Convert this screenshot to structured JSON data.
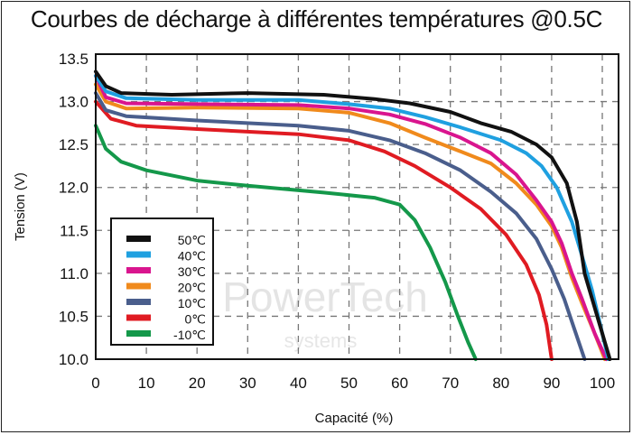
{
  "chart_data": {
    "type": "line",
    "title": "Courbes de décharge à différentes températures @0.5C",
    "xlabel": "Capacité (%)",
    "ylabel": "Tension (V)",
    "xlim": [
      0,
      101.5
    ],
    "ylim": [
      10.0,
      13.5
    ],
    "grid": true,
    "legend_position": "bottom-left",
    "x_ticks": [
      "0",
      "10",
      "20",
      "30",
      "40",
      "50",
      "60",
      "70",
      "80",
      "90",
      "100"
    ],
    "y_ticks": [
      "10.0",
      "10.5",
      "11.0",
      "11.5",
      "12.0",
      "12.5",
      "13.0",
      "13.5"
    ],
    "watermark": "PowerTech systems",
    "series": [
      {
        "name": "50℃",
        "color": "#111111",
        "points": [
          [
            0,
            13.35
          ],
          [
            2,
            13.18
          ],
          [
            5,
            13.1
          ],
          [
            15,
            13.08
          ],
          [
            30,
            13.1
          ],
          [
            45,
            13.08
          ],
          [
            55,
            13.03
          ],
          [
            62,
            12.98
          ],
          [
            70,
            12.88
          ],
          [
            76,
            12.75
          ],
          [
            82,
            12.65
          ],
          [
            87,
            12.5
          ],
          [
            90,
            12.35
          ],
          [
            93,
            12.05
          ],
          [
            95,
            11.6
          ],
          [
            96.5,
            11.0
          ],
          [
            98,
            10.7
          ],
          [
            100,
            10.3
          ],
          [
            101.5,
            10.0
          ]
        ]
      },
      {
        "name": "40℃",
        "color": "#1fa0e0",
        "points": [
          [
            0,
            13.3
          ],
          [
            2,
            13.12
          ],
          [
            6,
            13.04
          ],
          [
            20,
            13.02
          ],
          [
            40,
            13.02
          ],
          [
            50,
            12.97
          ],
          [
            58,
            12.92
          ],
          [
            65,
            12.82
          ],
          [
            72,
            12.7
          ],
          [
            80,
            12.55
          ],
          [
            85,
            12.4
          ],
          [
            88,
            12.25
          ],
          [
            91,
            12.0
          ],
          [
            94,
            11.6
          ],
          [
            96,
            11.2
          ],
          [
            98,
            10.8
          ],
          [
            100,
            10.3
          ],
          [
            101.2,
            10.0
          ]
        ]
      },
      {
        "name": "30℃",
        "color": "#d9158e",
        "points": [
          [
            0,
            13.3
          ],
          [
            2,
            13.05
          ],
          [
            6,
            12.98
          ],
          [
            20,
            12.97
          ],
          [
            40,
            12.96
          ],
          [
            50,
            12.92
          ],
          [
            58,
            12.85
          ],
          [
            65,
            12.74
          ],
          [
            72,
            12.58
          ],
          [
            78,
            12.4
          ],
          [
            83,
            12.15
          ],
          [
            87,
            11.85
          ],
          [
            90,
            11.6
          ],
          [
            92,
            11.35
          ],
          [
            94,
            11.0
          ],
          [
            96,
            10.7
          ],
          [
            98.5,
            10.3
          ],
          [
            100.8,
            10.0
          ]
        ]
      },
      {
        "name": "20℃",
        "color": "#f08a1c",
        "points": [
          [
            0,
            13.2
          ],
          [
            2,
            13.0
          ],
          [
            6,
            12.92
          ],
          [
            20,
            12.93
          ],
          [
            40,
            12.92
          ],
          [
            50,
            12.87
          ],
          [
            58,
            12.75
          ],
          [
            65,
            12.58
          ],
          [
            72,
            12.42
          ],
          [
            78,
            12.28
          ],
          [
            83,
            12.05
          ],
          [
            87,
            11.8
          ],
          [
            90,
            11.55
          ],
          [
            92,
            11.3
          ],
          [
            94,
            10.95
          ],
          [
            96,
            10.65
          ],
          [
            98.5,
            10.3
          ],
          [
            100.5,
            10.0
          ]
        ]
      },
      {
        "name": "10℃",
        "color": "#4a5e8c",
        "points": [
          [
            0,
            13.1
          ],
          [
            2,
            12.9
          ],
          [
            6,
            12.83
          ],
          [
            20,
            12.78
          ],
          [
            40,
            12.72
          ],
          [
            50,
            12.66
          ],
          [
            58,
            12.55
          ],
          [
            65,
            12.4
          ],
          [
            72,
            12.2
          ],
          [
            78,
            11.95
          ],
          [
            83,
            11.7
          ],
          [
            87,
            11.4
          ],
          [
            90,
            11.05
          ],
          [
            92.5,
            10.7
          ],
          [
            94.5,
            10.35
          ],
          [
            96.5,
            10.0
          ]
        ]
      },
      {
        "name": "0℃",
        "color": "#e01b22",
        "points": [
          [
            0,
            13.0
          ],
          [
            3,
            12.8
          ],
          [
            8,
            12.72
          ],
          [
            20,
            12.68
          ],
          [
            40,
            12.62
          ],
          [
            50,
            12.55
          ],
          [
            57,
            12.42
          ],
          [
            63,
            12.25
          ],
          [
            70,
            12.0
          ],
          [
            76,
            11.75
          ],
          [
            81,
            11.45
          ],
          [
            85,
            11.1
          ],
          [
            87.5,
            10.75
          ],
          [
            89,
            10.4
          ],
          [
            90,
            10.0
          ]
        ]
      },
      {
        "name": "-10℃",
        "color": "#14984a",
        "points": [
          [
            0,
            12.72
          ],
          [
            2,
            12.45
          ],
          [
            5,
            12.3
          ],
          [
            10,
            12.2
          ],
          [
            20,
            12.08
          ],
          [
            30,
            12.02
          ],
          [
            45,
            11.94
          ],
          [
            55,
            11.88
          ],
          [
            60,
            11.8
          ],
          [
            63,
            11.62
          ],
          [
            66,
            11.3
          ],
          [
            69,
            10.9
          ],
          [
            71.5,
            10.5
          ],
          [
            73.5,
            10.2
          ],
          [
            75,
            10.0
          ]
        ]
      }
    ]
  }
}
